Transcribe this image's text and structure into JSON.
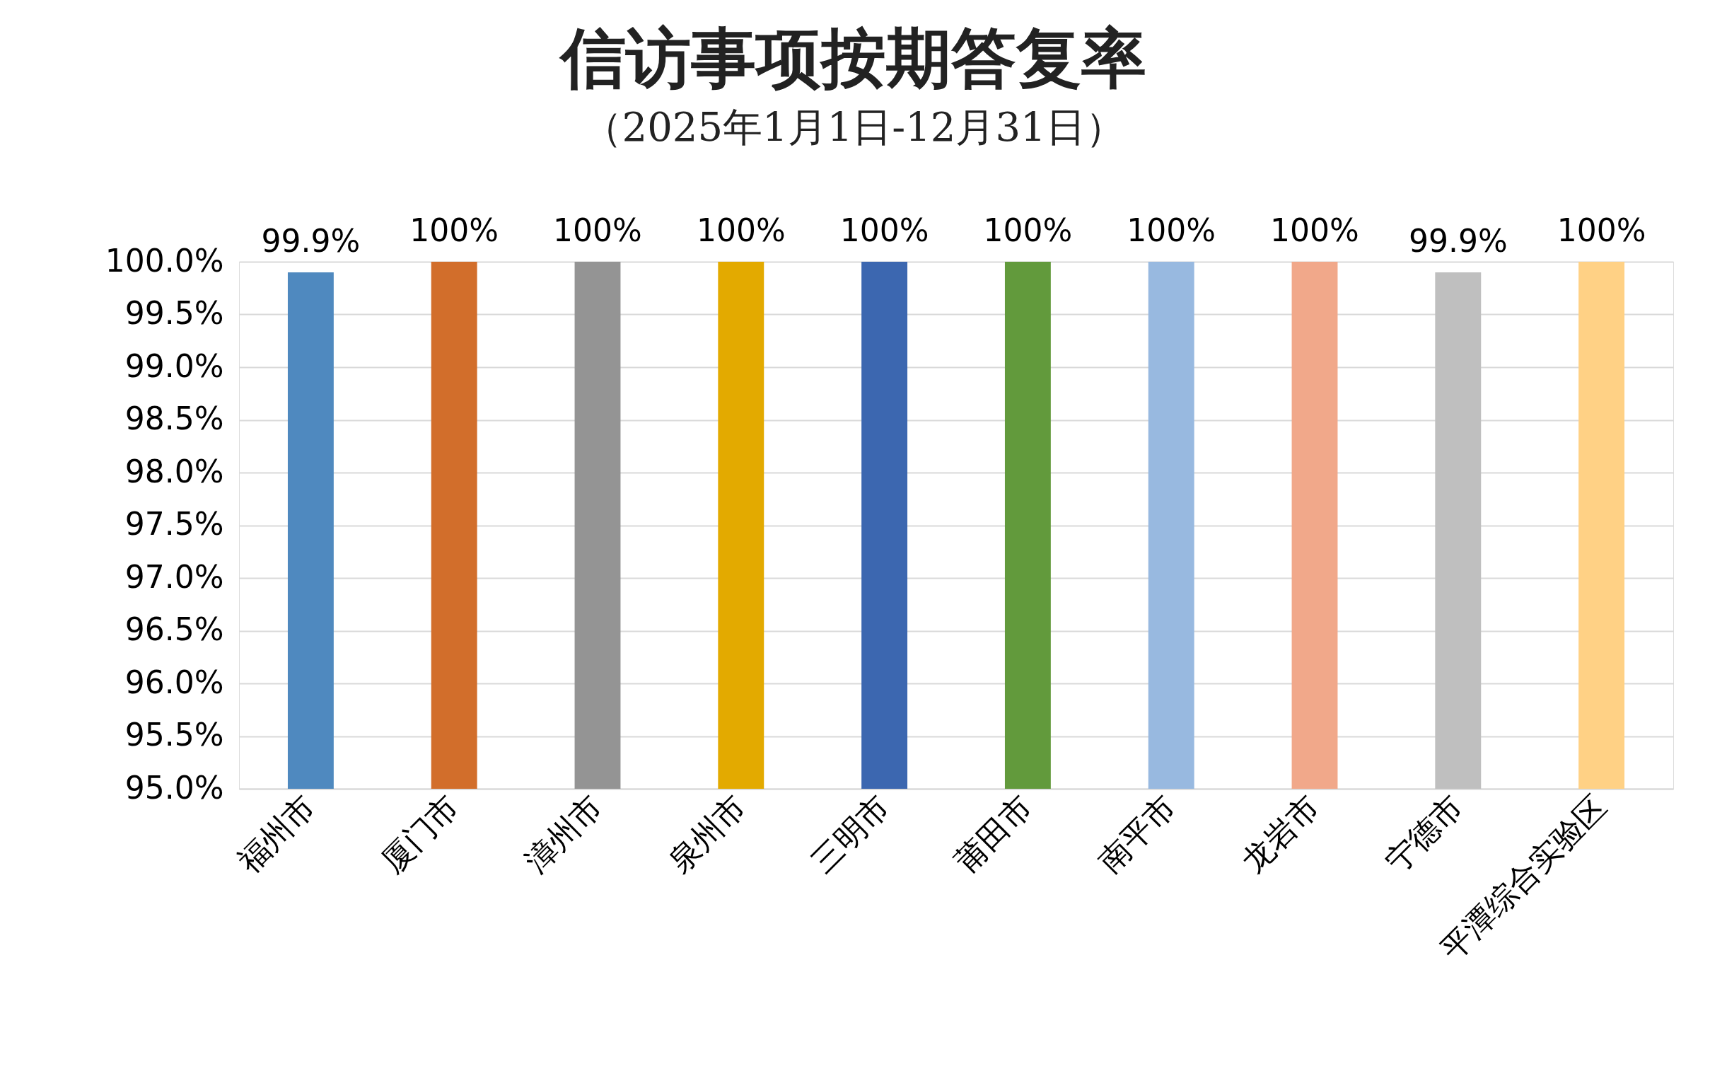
{
  "chart_data": {
    "type": "bar",
    "title": "信访事项按期答复率",
    "subtitle": "（2025年1月1日-12月31日）",
    "categories": [
      "福州市",
      "厦门市",
      "漳州市",
      "泉州市",
      "三明市",
      "莆田市",
      "南平市",
      "龙岩市",
      "宁德市",
      "平潭综合实验区"
    ],
    "values": [
      99.9,
      100,
      100,
      100,
      100,
      100,
      100,
      100,
      99.9,
      100
    ],
    "colors": [
      "#4f89bf",
      "#d26e2b",
      "#949494",
      "#e3aa00",
      "#3c67b0",
      "#629a3c",
      "#98b9e0",
      "#f1a88a",
      "#bfbfbf",
      "#ffd185"
    ],
    "value_labels": [
      "99.9%",
      "100%",
      "100%",
      "100%",
      "100%",
      "100%",
      "100%",
      "100%",
      "99.9%",
      "100%"
    ],
    "ylim": [
      95,
      100
    ],
    "yticks": [
      {
        "value": 95,
        "label": "95.0%"
      },
      {
        "value": 95.5,
        "label": "95.5%"
      },
      {
        "value": 96,
        "label": "96.0%"
      },
      {
        "value": 96.5,
        "label": "96.5%"
      },
      {
        "value": 97,
        "label": "97.0%"
      },
      {
        "value": 97.5,
        "label": "97.5%"
      },
      {
        "value": 98,
        "label": "98.0%"
      },
      {
        "value": 98.5,
        "label": "98.5%"
      },
      {
        "value": 99,
        "label": "99.0%"
      },
      {
        "value": 99.5,
        "label": "99.5%"
      },
      {
        "value": 100,
        "label": "100.0%"
      }
    ],
    "grid": "y"
  }
}
